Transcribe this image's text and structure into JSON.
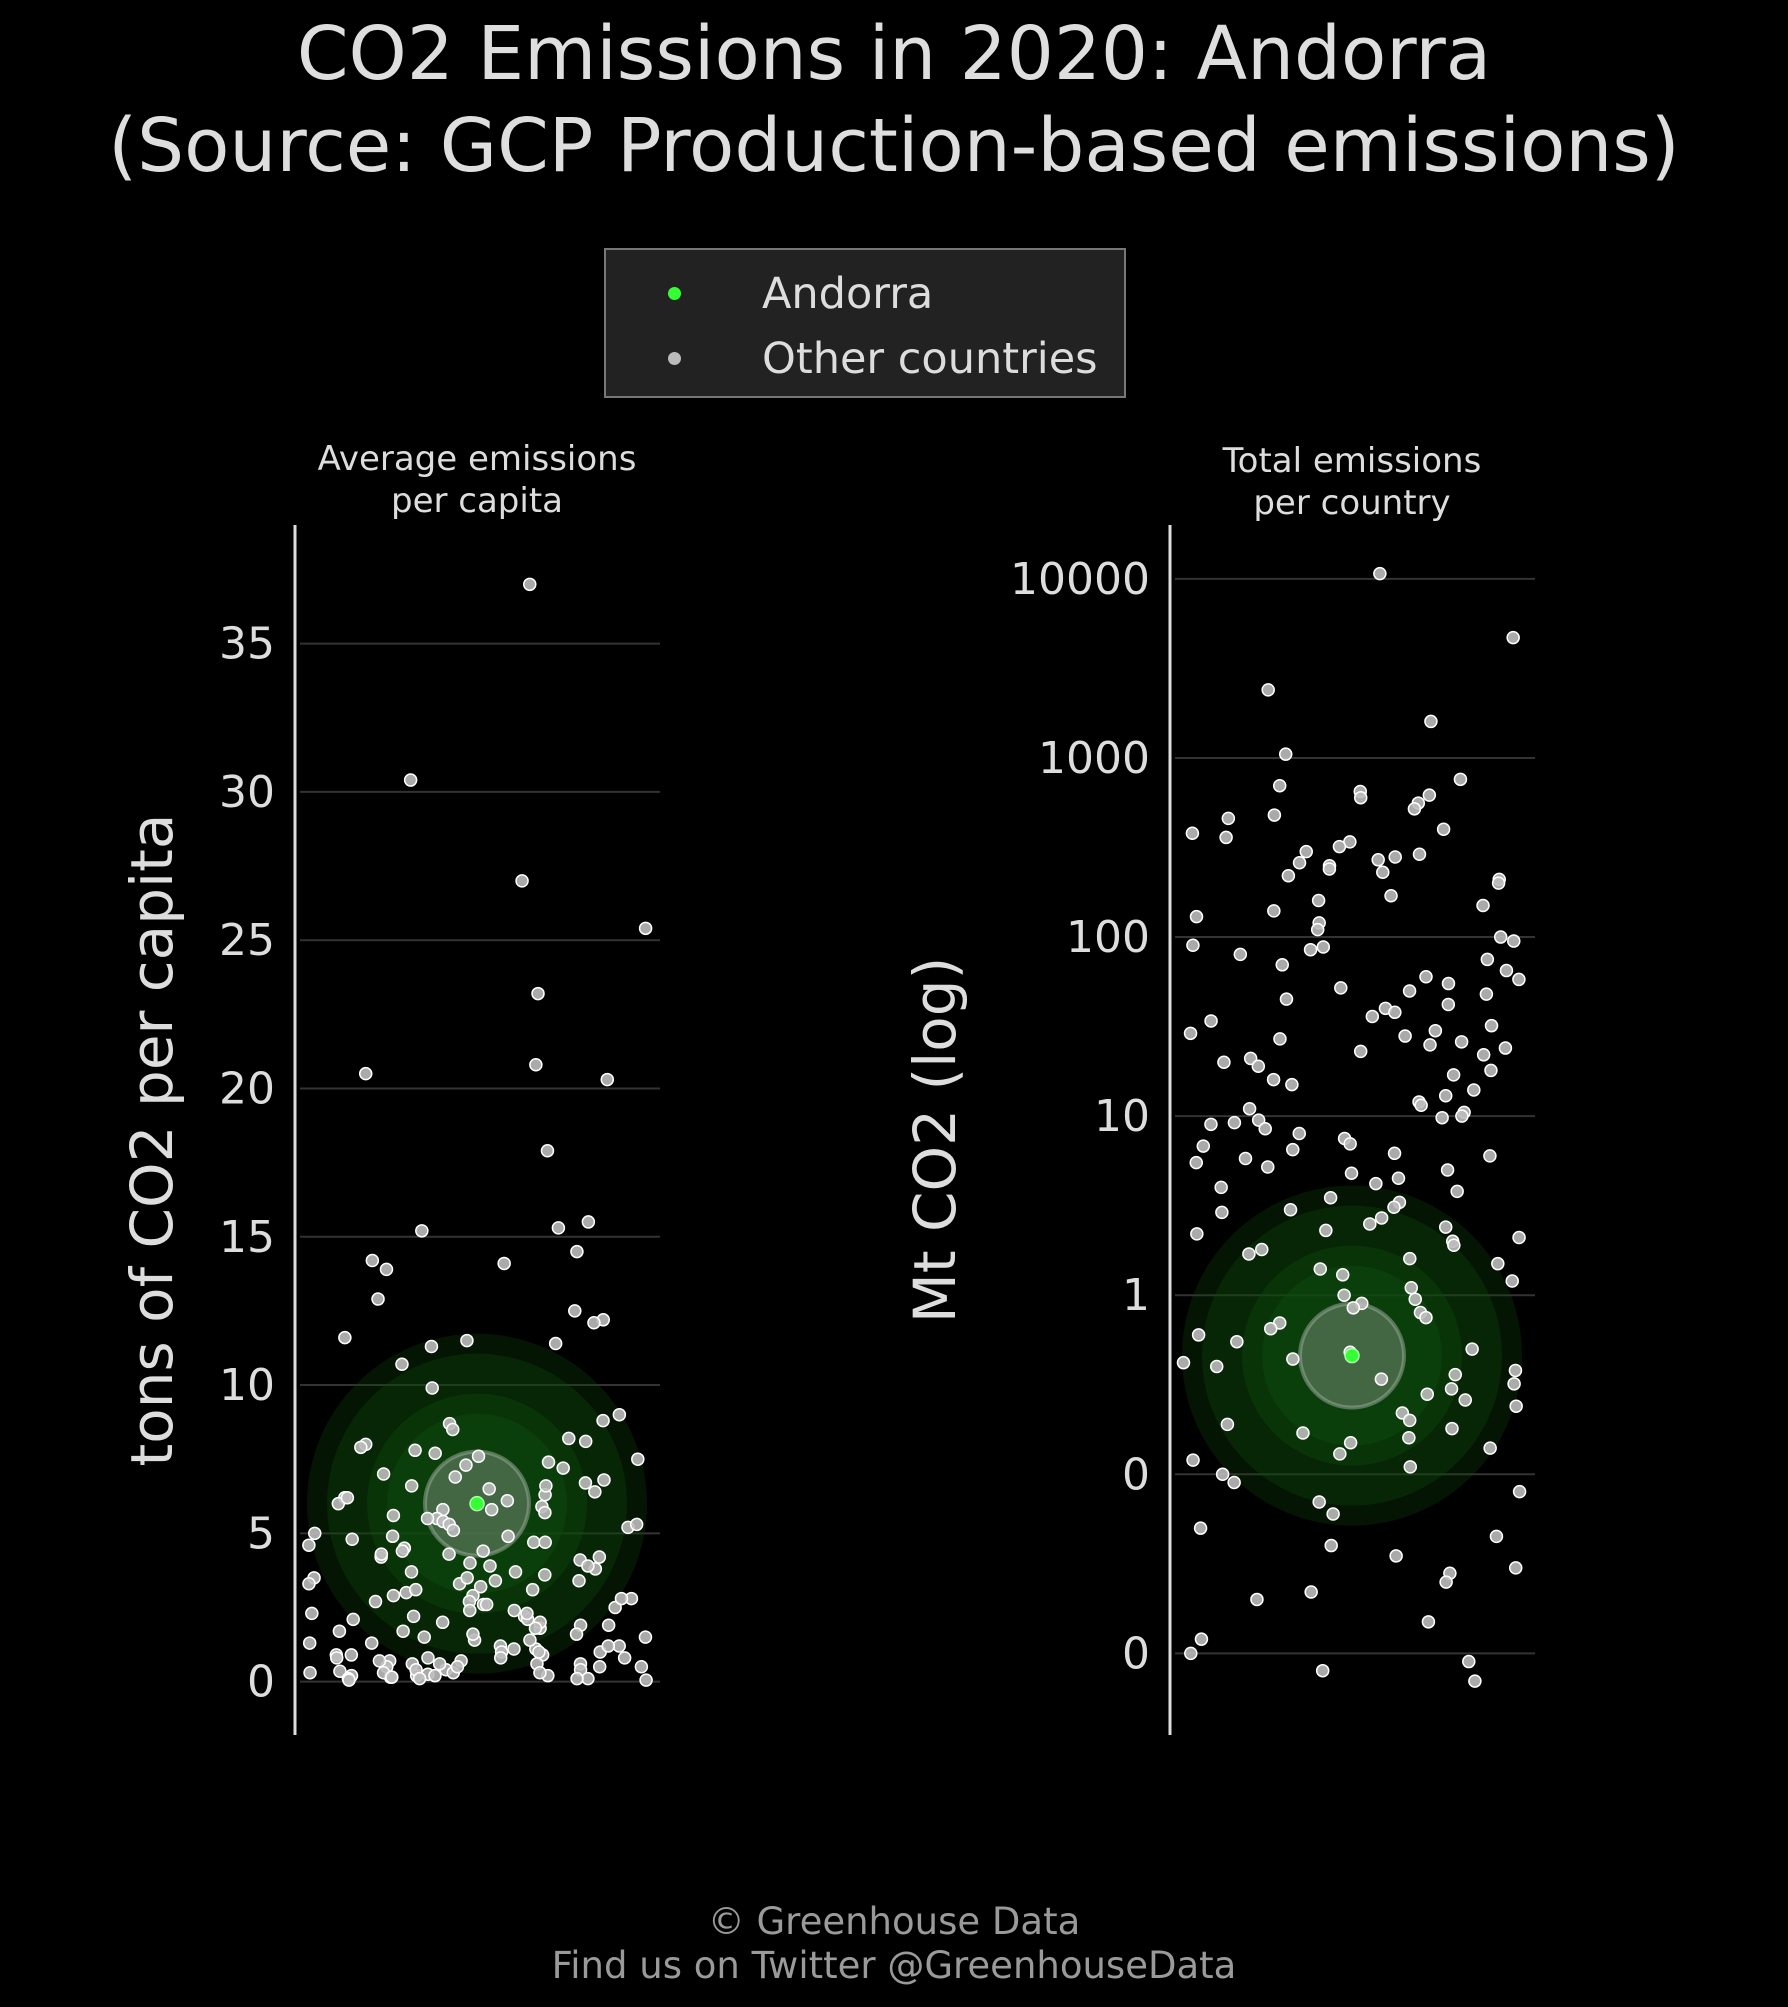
{
  "title": {
    "line1": "CO2 Emissions in 2020: Andorra",
    "line2": "(Source: GCP Production-based emissions)"
  },
  "legend": {
    "items": [
      {
        "label": "Andorra",
        "color": "#33ff33"
      },
      {
        "label": "Other countries",
        "color": "#bbbbbb"
      }
    ]
  },
  "colors": {
    "background": "#000000",
    "highlight": "#33ff33",
    "others_fill": "#bdbdbd",
    "others_edge": "#ffffff",
    "grid": "#333333",
    "axis": "#dddddd"
  },
  "chart_data": [
    {
      "type": "scatter",
      "panel_title_line1": "Average emissions",
      "panel_title_line2": "per capita",
      "ylabel": "tons of CO2 per capita",
      "ylim": [
        -1.8,
        39
      ],
      "yticks": [
        0,
        5,
        10,
        15,
        20,
        25,
        30,
        35
      ],
      "ytick_labels": [
        "0",
        "5",
        "10",
        "15",
        "20",
        "25",
        "30",
        "35"
      ],
      "grid": true,
      "highlight": {
        "name": "Andorra",
        "value": 6.0
      },
      "other_countries_values": [
        37.0,
        30.4,
        27.0,
        25.4,
        23.2,
        20.8,
        20.5,
        20.3,
        17.9,
        15.5,
        15.3,
        15.2,
        14.5,
        14.2,
        14.1,
        13.9,
        12.9,
        12.5,
        12.2,
        12.1,
        11.6,
        11.5,
        11.4,
        11.3,
        10.7,
        9.9,
        9.0,
        8.8,
        8.7,
        8.5,
        8.1,
        8.0,
        7.9,
        7.8,
        7.7,
        7.6,
        7.5,
        7.3,
        7.2,
        7.0,
        6.9,
        6.8,
        6.7,
        6.6,
        6.5,
        6.4,
        6.3,
        6.2,
        6.1,
        6.0,
        5.9,
        5.8,
        5.7,
        5.6,
        5.5,
        5.4,
        5.3,
        5.2,
        5.1,
        5.0,
        4.9,
        4.8,
        4.7,
        4.6,
        4.5,
        4.4,
        4.3,
        4.2,
        4.1,
        4.0,
        3.9,
        3.8,
        3.7,
        3.6,
        3.5,
        3.4,
        3.3,
        3.2,
        3.1,
        3.0,
        2.9,
        2.8,
        2.7,
        2.6,
        2.5,
        2.4,
        2.3,
        2.2,
        2.1,
        2.0,
        1.9,
        1.8,
        1.7,
        1.6,
        1.5,
        1.4,
        1.3,
        1.2,
        1.1,
        1.0,
        1.0,
        0.9,
        0.9,
        0.8,
        0.8,
        0.7,
        0.7,
        0.6,
        0.6,
        0.5,
        0.5,
        0.4,
        0.4,
        0.3,
        0.3,
        0.2,
        0.2,
        0.1,
        0.1,
        0.05,
        4.9,
        4.2,
        3.7,
        3.3,
        2.9,
        2.6,
        2.3,
        2.0,
        1.8,
        1.6,
        1.4,
        1.2,
        1.0,
        0.9,
        0.8,
        0.7,
        0.6,
        0.5,
        0.4,
        0.3,
        0.25,
        0.2,
        0.15,
        0.1,
        6.2,
        5.8,
        5.3,
        4.7,
        4.4,
        3.9,
        3.4,
        3.1,
        2.7,
        2.4,
        2.1,
        1.9,
        1.5,
        1.3,
        1.1,
        0.6,
        0.35,
        0.2,
        0.1,
        0.05,
        8.2,
        7.4,
        6.6,
        5.5,
        4.3,
        3.5,
        2.8,
        2.2,
        1.7,
        1.2,
        0.8,
        0.5,
        0.3,
        0.15
      ]
    },
    {
      "type": "scatter",
      "panel_title_line1": "Total emissions",
      "panel_title_line2": "per country",
      "ylabel": "Mt CO2 (log)",
      "yscale": "log",
      "ylim": [
        0.0035,
        20000
      ],
      "yticks": [
        0.01,
        0.1,
        1,
        10,
        100,
        1000,
        10000
      ],
      "ytick_labels": [
        "0",
        "0",
        "1",
        "10",
        "100",
        "1000",
        "10000"
      ],
      "grid": true,
      "highlight": {
        "name": "Andorra",
        "value": 0.46
      },
      "other_countries_values": [
        10700,
        4700,
        2400,
        1600,
        1050,
        760,
        700,
        650,
        620,
        600,
        560,
        520,
        480,
        460,
        400,
        380,
        360,
        340,
        320,
        300,
        290,
        280,
        270,
        260,
        250,
        240,
        230,
        220,
        210,
        200,
        170,
        160,
        150,
        140,
        130,
        120,
        110,
        100,
        95,
        90,
        88,
        85,
        80,
        75,
        70,
        65,
        60,
        58,
        55,
        52,
        50,
        48,
        45,
        42,
        40,
        38,
        36,
        34,
        32,
        30,
        29,
        28,
        27,
        26,
        25,
        24,
        23,
        22,
        21,
        20,
        19,
        18,
        17,
        16,
        15,
        14,
        13,
        12,
        11.5,
        11,
        10.5,
        10,
        9.8,
        9.5,
        9.2,
        9,
        8.5,
        8,
        7.5,
        7,
        6.8,
        6.5,
        6.2,
        6,
        5.8,
        5.5,
        5.2,
        5,
        4.8,
        4.5,
        4.2,
        4,
        3.8,
        3.5,
        3.3,
        3.1,
        3,
        2.9,
        2.7,
        2.5,
        2.4,
        2.3,
        2.2,
        2.1,
        2.0,
        1.9,
        1.8,
        1.7,
        1.6,
        1.5,
        1.4,
        1.3,
        1.2,
        1.1,
        1.0,
        0.95,
        0.9,
        0.85,
        0.8,
        0.75,
        0.7,
        0.65,
        0.6,
        0.55,
        0.5,
        0.48,
        0.44,
        0.42,
        0.4,
        0.38,
        0.36,
        0.34,
        0.32,
        0.3,
        0.28,
        0.26,
        0.24,
        0.22,
        0.2,
        0.19,
        0.18,
        0.17,
        0.16,
        0.15,
        0.14,
        0.13,
        0.12,
        0.11,
        0.1,
        0.09,
        0.08,
        0.07,
        0.06,
        0.05,
        0.045,
        0.04,
        0.035,
        0.03,
        0.028,
        0.025,
        0.022,
        0.02,
        0.015,
        0.012,
        0.01,
        0.009,
        0.008,
        0.007
      ]
    }
  ],
  "footer": {
    "line1": "© Greenhouse Data",
    "line2": "Find us on Twitter @GreenhouseData"
  }
}
